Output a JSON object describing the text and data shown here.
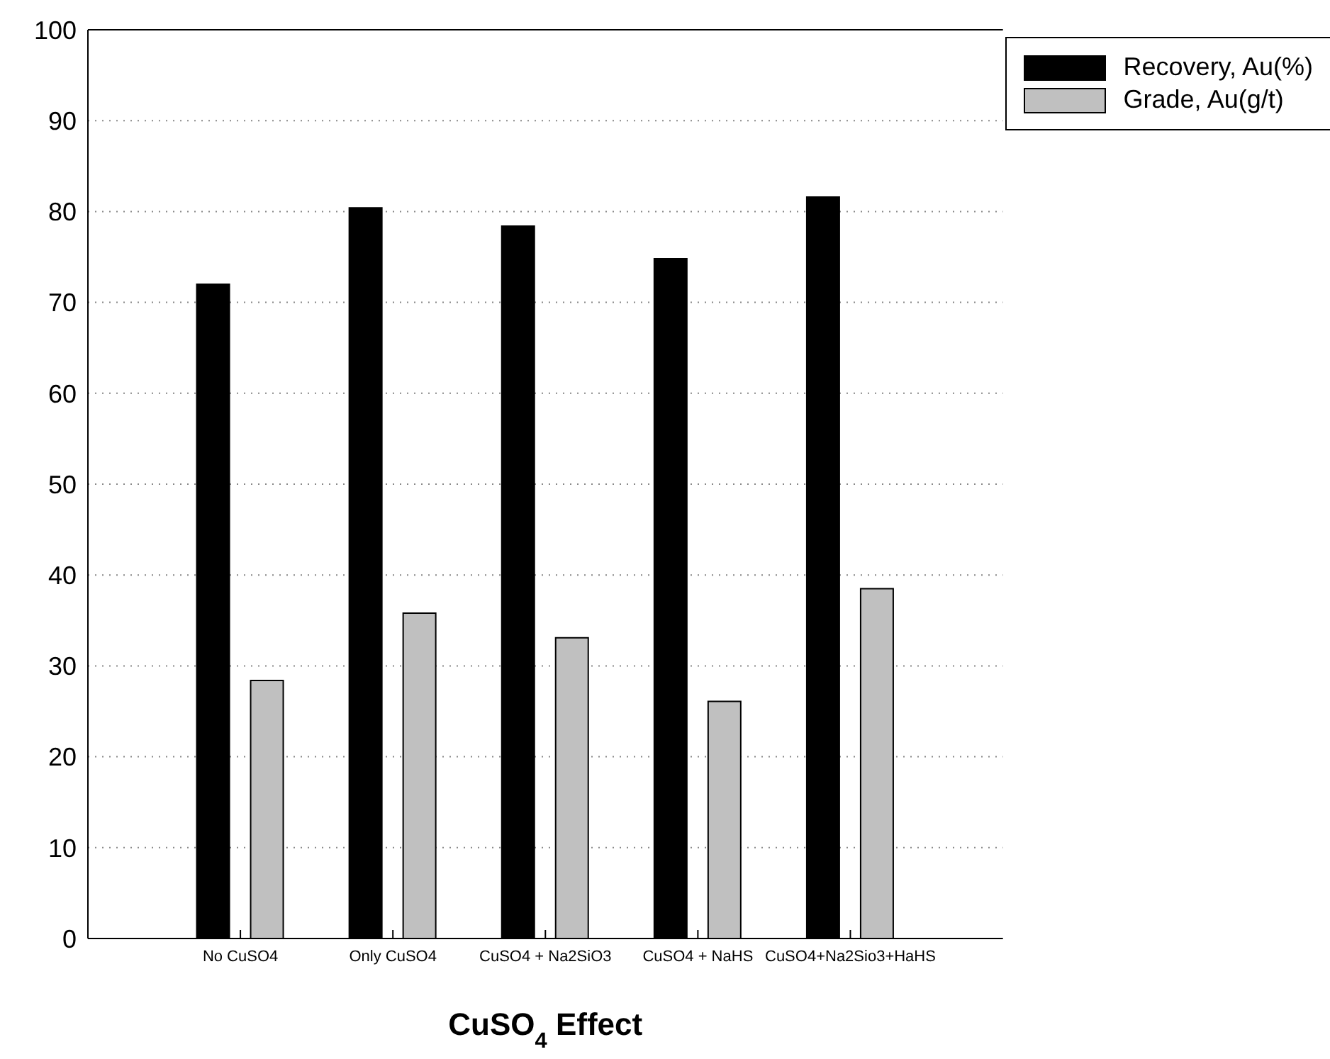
{
  "chart_data": {
    "type": "bar",
    "xlabel": "CuSO$_{4}$ Effect",
    "categories": [
      "No CuSO4",
      "Only CuSO4",
      "CuSO4 + Na2SiO3",
      "CuSO4 + NaHS",
      "CuSO4+Na2Sio3+HaHS"
    ],
    "series": [
      {
        "name": "Recovery, Au(%)",
        "color": "#000000",
        "values": [
          72.0,
          80.4,
          78.4,
          74.8,
          81.6
        ]
      },
      {
        "name": "Grade, Au(g/t)",
        "color": "#c0c0c0",
        "values": [
          28.4,
          35.8,
          33.1,
          26.1,
          38.5
        ]
      }
    ],
    "ylim": [
      0,
      100
    ],
    "yticks": [
      0,
      10,
      20,
      30,
      40,
      50,
      60,
      70,
      80,
      90,
      100
    ],
    "grid": "y",
    "legend": "top right"
  }
}
